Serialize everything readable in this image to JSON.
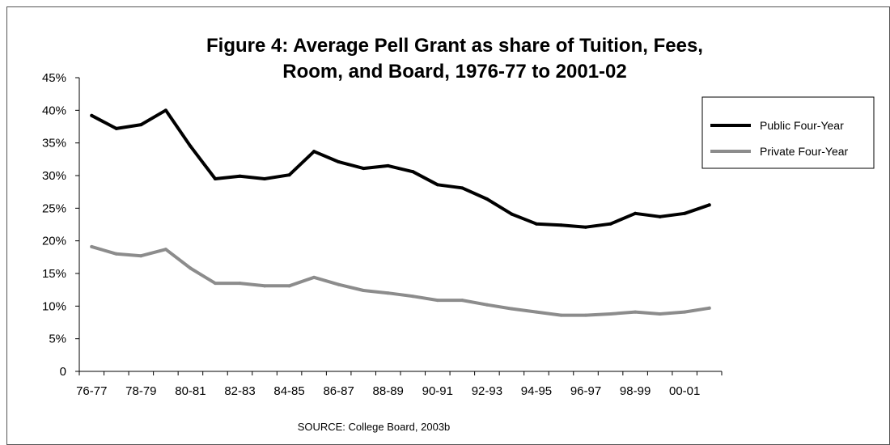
{
  "chart_data": {
    "type": "line",
    "title": "Figure 4: Average Pell Grant as share of Tuition, Fees, Room, and Board, 1976-77 to 2001-02",
    "title_lines": [
      "Figure 4: Average Pell Grant as share of Tuition, Fees,",
      "Room, and Board, 1976-77 to 2001-02"
    ],
    "x": [
      "76-77",
      "77-78",
      "78-79",
      "79-80",
      "80-81",
      "81-82",
      "82-83",
      "83-84",
      "84-85",
      "85-86",
      "86-87",
      "87-88",
      "88-89",
      "89-90",
      "90-91",
      "91-92",
      "92-93",
      "93-94",
      "94-95",
      "95-96",
      "96-97",
      "97-98",
      "98-99",
      "99-00",
      "00-01",
      "01-02"
    ],
    "x_tick_labels": [
      "76-77",
      "78-79",
      "80-81",
      "82-83",
      "84-85",
      "86-87",
      "88-89",
      "90-91",
      "92-93",
      "94-95",
      "96-97",
      "98-99",
      "00-01"
    ],
    "y_tick_labels": [
      "0",
      "5%",
      "10%",
      "15%",
      "20%",
      "25%",
      "30%",
      "35%",
      "40%",
      "45%"
    ],
    "ylim": [
      0,
      45
    ],
    "y_unit": "%",
    "xlabel": "",
    "ylabel": "",
    "grid": false,
    "legend_position": "top-right",
    "series": [
      {
        "name": "Public Four-Year",
        "color": "#000000",
        "values": [
          39.2,
          37.2,
          37.8,
          40.0,
          34.5,
          29.5,
          29.9,
          29.5,
          30.1,
          33.7,
          32.1,
          31.1,
          31.5,
          30.6,
          28.6,
          28.1,
          26.4,
          24.1,
          22.6,
          22.4,
          22.1,
          22.6,
          24.2,
          23.7,
          24.2,
          25.5
        ]
      },
      {
        "name": "Private Four-Year",
        "color": "#8c8c8c",
        "values": [
          19.1,
          18.0,
          17.7,
          18.7,
          15.8,
          13.5,
          13.5,
          13.1,
          13.1,
          14.4,
          13.3,
          12.4,
          12.0,
          11.5,
          10.9,
          10.9,
          10.2,
          9.6,
          9.1,
          8.6,
          8.6,
          8.8,
          9.1,
          8.8,
          9.1,
          9.7
        ]
      }
    ],
    "source": "SOURCE: College Board, 2003b"
  }
}
